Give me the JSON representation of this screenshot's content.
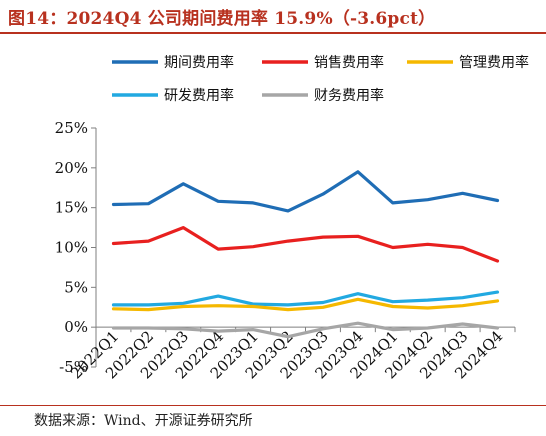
{
  "title": "图14：2024Q4 公司期间费用率 15.9%（-3.6pct）",
  "source": "数据来源：Wind、开源证券研究所",
  "chart_data": {
    "type": "line",
    "title": "图14：2024Q4 公司期间费用率 15.9%（-3.6pct）",
    "xlabel": "",
    "ylabel": "",
    "categories": [
      "2022Q1",
      "2022Q2",
      "2022Q3",
      "2022Q4",
      "2023Q1",
      "2023Q2",
      "2023Q3",
      "2023Q4",
      "2024Q1",
      "2024Q2",
      "2024Q3",
      "2024Q4"
    ],
    "ylim": [
      -5,
      25
    ],
    "yticks": [
      "-5%",
      "0%",
      "5%",
      "10%",
      "15%",
      "20%",
      "25%"
    ],
    "ytick_values": [
      -5,
      0,
      5,
      10,
      15,
      20,
      25
    ],
    "grid": false,
    "legend_position": "top",
    "series": [
      {
        "name": "期间费用率",
        "color": "#1f6db5",
        "values": [
          15.4,
          15.5,
          18.0,
          15.8,
          15.6,
          14.6,
          16.7,
          19.5,
          15.6,
          16.0,
          16.8,
          15.9
        ]
      },
      {
        "name": "销售费用率",
        "color": "#e8201f",
        "values": [
          10.5,
          10.8,
          12.5,
          9.8,
          10.1,
          10.8,
          11.3,
          11.4,
          10.0,
          10.4,
          10.0,
          8.3
        ]
      },
      {
        "name": "管理费用率",
        "color": "#f5b800",
        "values": [
          2.3,
          2.2,
          2.6,
          2.7,
          2.6,
          2.2,
          2.5,
          3.5,
          2.6,
          2.4,
          2.7,
          3.3
        ]
      },
      {
        "name": "研发费用率",
        "color": "#22a9e1",
        "values": [
          2.8,
          2.8,
          3.0,
          3.9,
          2.9,
          2.8,
          3.1,
          4.2,
          3.2,
          3.4,
          3.7,
          4.4
        ]
      },
      {
        "name": "财务费用率",
        "color": "#a6a6a6",
        "values": [
          -0.1,
          -0.1,
          -0.2,
          -0.5,
          -0.3,
          -1.2,
          -0.2,
          0.5,
          -0.3,
          -0.1,
          0.4,
          -0.1
        ]
      }
    ]
  }
}
